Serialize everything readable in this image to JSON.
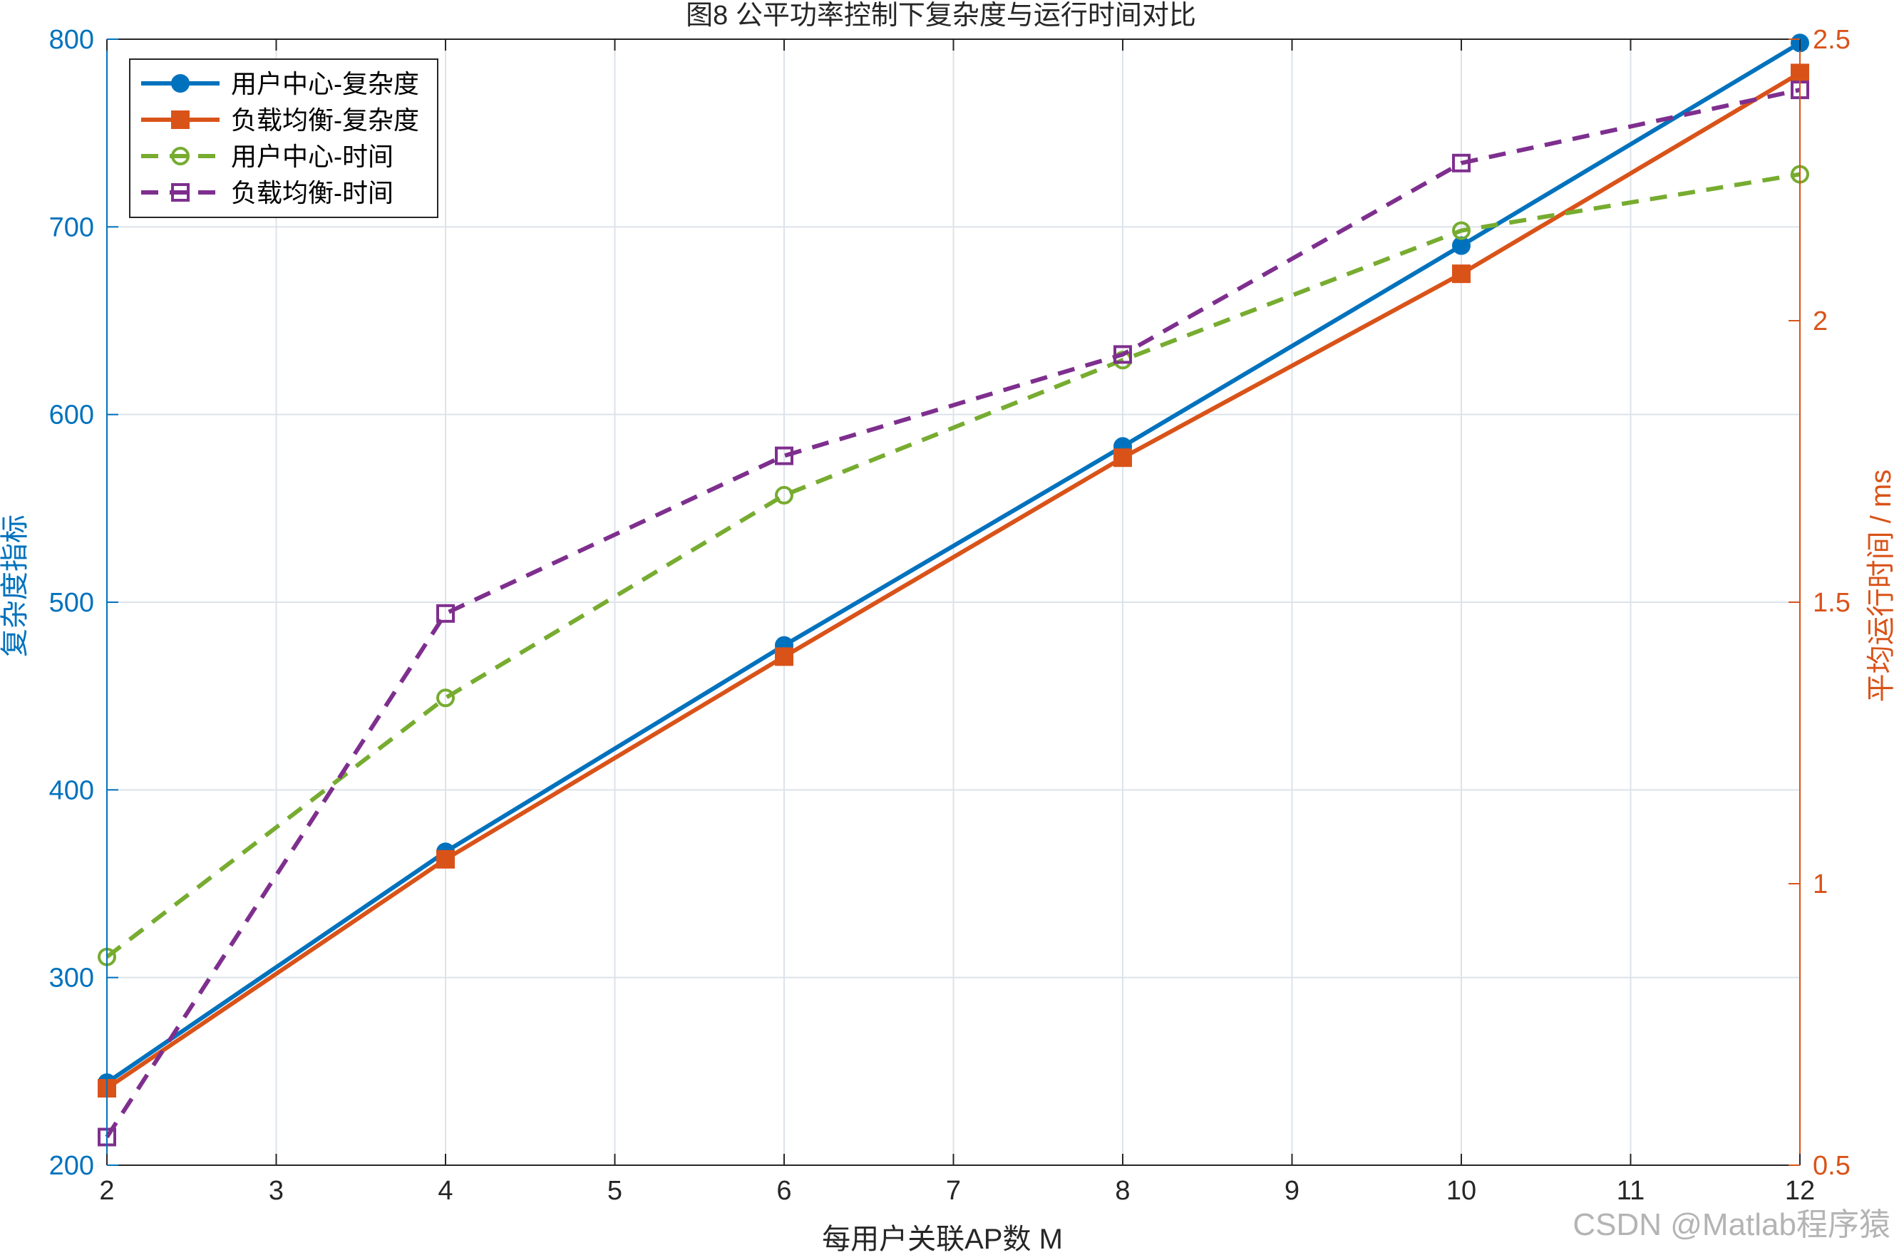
{
  "chart_data": {
    "type": "line",
    "title": "图8 公平功率控制下复杂度与运行时间对比",
    "xlabel": "每用户关联AP数 M",
    "ylabel_left": "复杂度指标",
    "ylabel_right": "平均运行时间 / ms",
    "xlim": [
      2,
      12
    ],
    "ylim_left": [
      200,
      800
    ],
    "ylim_right": [
      0.5,
      2.5
    ],
    "x_ticks": [
      "2",
      "3",
      "4",
      "5",
      "6",
      "7",
      "8",
      "9",
      "10",
      "11",
      "12"
    ],
    "y_left_ticks": [
      "200",
      "300",
      "400",
      "500",
      "600",
      "700",
      "800"
    ],
    "y_right_ticks": [
      "0.5",
      "1",
      "1.5",
      "2",
      "2.5"
    ],
    "grid": true,
    "legend_position": "top-left",
    "x": [
      2,
      4,
      6,
      8,
      10,
      12
    ],
    "series": [
      {
        "name": "用户中心-复杂度",
        "axis": "left",
        "values": [
          244,
          367,
          477,
          583,
          690,
          798
        ],
        "color": "#0072BD",
        "line": "solid",
        "marker": "filled-circle"
      },
      {
        "name": "负载均衡-复杂度",
        "axis": "left",
        "values": [
          241,
          363,
          471,
          577,
          675,
          782
        ],
        "color": "#D95319",
        "line": "solid",
        "marker": "filled-square"
      },
      {
        "name": "用户中心-时间",
        "axis": "right",
        "values": [
          0.87,
          1.33,
          1.69,
          1.93,
          2.16,
          2.26
        ],
        "color": "#77AC30",
        "line": "dashed",
        "marker": "open-circle"
      },
      {
        "name": "负载均衡-时间",
        "axis": "right",
        "values": [
          0.55,
          1.48,
          1.76,
          1.94,
          2.28,
          2.41
        ],
        "color": "#7E2F8E",
        "line": "dashed",
        "marker": "open-square"
      }
    ],
    "colors": {
      "left_axis": "#0072BD",
      "right_axis": "#D95319",
      "grid": "#DCE3EA",
      "axis_box": "#262626",
      "watermark": "#B4B4B4"
    }
  },
  "watermark": "CSDN @Matlab程序猿"
}
